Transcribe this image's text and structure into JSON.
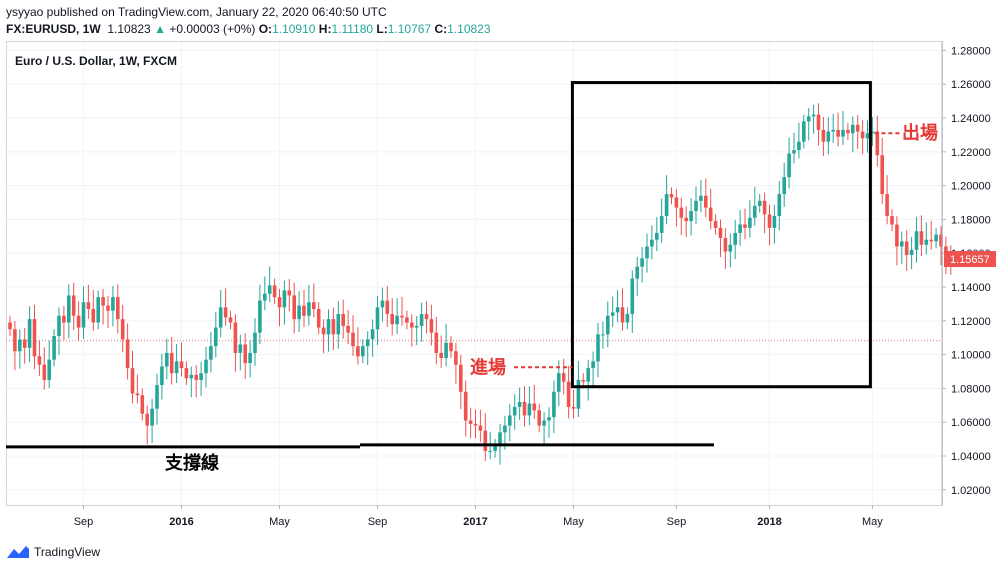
{
  "header": {
    "published_line": "ysyyao published on TradingView.com, January 22, 2020 06:40:50 UTC",
    "symbol": "FX:EURUSD, 1W",
    "last": "1.10823",
    "change": "+0.00003 (+0%)",
    "o_label": "O:",
    "o_value": "1.10910",
    "h_label": "H:",
    "h_value": "1.11180",
    "l_label": "L:",
    "l_value": "1.10767",
    "c_label": "C:",
    "c_value": "1.10823"
  },
  "colors": {
    "up": "#26a69a",
    "down": "#ef5350",
    "annotation": "#e53935",
    "price_tag": "#ef5350"
  },
  "chart_data": {
    "type": "candlestick",
    "title": "Euro / U.S. Dollar, 1W, FXCM",
    "x_ticks": [
      "Sep",
      "2016",
      "May",
      "Sep",
      "2017",
      "May",
      "Sep",
      "2018",
      "May"
    ],
    "y_ticks": [
      "1.02000",
      "1.04000",
      "1.06000",
      "1.08000",
      "1.10000",
      "1.12000",
      "1.14000",
      "1.16000",
      "1.18000",
      "1.20000",
      "1.22000",
      "1.24000",
      "1.26000",
      "1.28000"
    ],
    "ylim": [
      1.011,
      1.285
    ],
    "current_price": "1.15657",
    "reference_line": 1.1082,
    "support_level": 1.046,
    "annotations": {
      "entry": "進場",
      "exit": "出場",
      "support": "支撐線"
    },
    "entry_price": 1.0925,
    "exit_price": 1.231,
    "box": {
      "start_index": 116,
      "end_index": 176,
      "low": 1.081,
      "high": 1.261
    },
    "closes": [
      1.115,
      1.102,
      1.109,
      1.104,
      1.121,
      1.099,
      1.094,
      1.085,
      1.097,
      1.111,
      1.123,
      1.119,
      1.135,
      1.123,
      1.116,
      1.131,
      1.127,
      1.119,
      1.134,
      1.129,
      1.126,
      1.134,
      1.121,
      1.109,
      1.092,
      1.077,
      1.076,
      1.065,
      1.058,
      1.068,
      1.082,
      1.093,
      1.101,
      1.089,
      1.096,
      1.092,
      1.086,
      1.088,
      1.085,
      1.089,
      1.097,
      1.105,
      1.116,
      1.128,
      1.122,
      1.119,
      1.101,
      1.106,
      1.095,
      1.101,
      1.113,
      1.132,
      1.136,
      1.141,
      1.134,
      1.128,
      1.138,
      1.135,
      1.121,
      1.129,
      1.123,
      1.131,
      1.127,
      1.116,
      1.112,
      1.121,
      1.112,
      1.124,
      1.117,
      1.113,
      1.105,
      1.099,
      1.105,
      1.109,
      1.115,
      1.128,
      1.132,
      1.124,
      1.118,
      1.123,
      1.122,
      1.119,
      1.116,
      1.117,
      1.124,
      1.121,
      1.113,
      1.101,
      1.098,
      1.107,
      1.102,
      1.094,
      1.078,
      1.061,
      1.059,
      1.058,
      1.055,
      1.043,
      1.043,
      1.046,
      1.054,
      1.058,
      1.064,
      1.069,
      1.072,
      1.064,
      1.071,
      1.067,
      1.058,
      1.061,
      1.063,
      1.078,
      1.089,
      1.084,
      1.069,
      1.068,
      1.085,
      1.084,
      1.092,
      1.096,
      1.112,
      1.112,
      1.123,
      1.125,
      1.128,
      1.119,
      1.124,
      1.145,
      1.152,
      1.157,
      1.164,
      1.168,
      1.172,
      1.182,
      1.195,
      1.193,
      1.187,
      1.181,
      1.179,
      1.185,
      1.191,
      1.194,
      1.187,
      1.179,
      1.175,
      1.169,
      1.161,
      1.165,
      1.172,
      1.177,
      1.175,
      1.181,
      1.188,
      1.191,
      1.183,
      1.175,
      1.182,
      1.195,
      1.205,
      1.219,
      1.221,
      1.226,
      1.238,
      1.241,
      1.242,
      1.233,
      1.226,
      1.232,
      1.233,
      1.229,
      1.233,
      1.231,
      1.236,
      1.232,
      1.228,
      1.231,
      1.232,
      1.218,
      1.195,
      1.182,
      1.177,
      1.164,
      1.167,
      1.159,
      1.162,
      1.173,
      1.165,
      1.168,
      1.167,
      1.171,
      1.164,
      1.158,
      1.1566
    ]
  },
  "footer": {
    "brand": "TradingView"
  }
}
